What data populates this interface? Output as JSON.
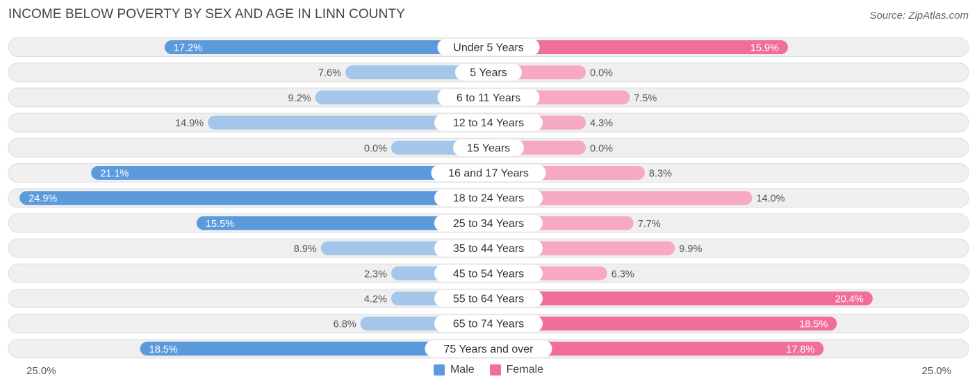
{
  "title": "INCOME BELOW POVERTY BY SEX AND AGE IN LINN COUNTY",
  "source": "Source: ZipAtlas.com",
  "colors": {
    "male_strong": "#5b9bdc",
    "male_light": "#a4c6ea",
    "female_strong": "#f06e98",
    "female_light": "#f7a8c2",
    "track": "#efefef",
    "track_border": "#dedede"
  },
  "chart_data": {
    "type": "bar",
    "orientation": "horizontal-diverging",
    "title": "INCOME BELOW POVERTY BY SEX AND AGE IN LINN COUNTY",
    "categories": [
      "Under 5 Years",
      "5 Years",
      "6 to 11 Years",
      "12 to 14 Years",
      "15 Years",
      "16 and 17 Years",
      "18 to 24 Years",
      "25 to 34 Years",
      "35 to 44 Years",
      "45 to 54 Years",
      "55 to 64 Years",
      "65 to 74 Years",
      "75 Years and over"
    ],
    "series": [
      {
        "name": "Male",
        "values": [
          17.2,
          7.6,
          9.2,
          14.9,
          0.0,
          21.1,
          24.9,
          15.5,
          8.9,
          2.3,
          4.2,
          6.8,
          18.5
        ],
        "labels": [
          "17.2%",
          "7.6%",
          "9.2%",
          "14.9%",
          "0.0%",
          "21.1%",
          "24.9%",
          "15.5%",
          "8.9%",
          "2.3%",
          "4.2%",
          "6.8%",
          "18.5%"
        ]
      },
      {
        "name": "Female",
        "values": [
          15.9,
          0.0,
          7.5,
          4.3,
          0.0,
          8.3,
          14.0,
          7.7,
          9.9,
          6.3,
          20.4,
          18.5,
          17.8
        ],
        "labels": [
          "15.9%",
          "0.0%",
          "7.5%",
          "4.3%",
          "0.0%",
          "8.3%",
          "14.0%",
          "7.7%",
          "9.9%",
          "6.3%",
          "20.4%",
          "18.5%",
          "17.8%"
        ]
      }
    ],
    "xlim": [
      0,
      25
    ],
    "axis_left_label": "25.0%",
    "axis_right_label": "25.0%",
    "legend": [
      "Male",
      "Female"
    ]
  }
}
